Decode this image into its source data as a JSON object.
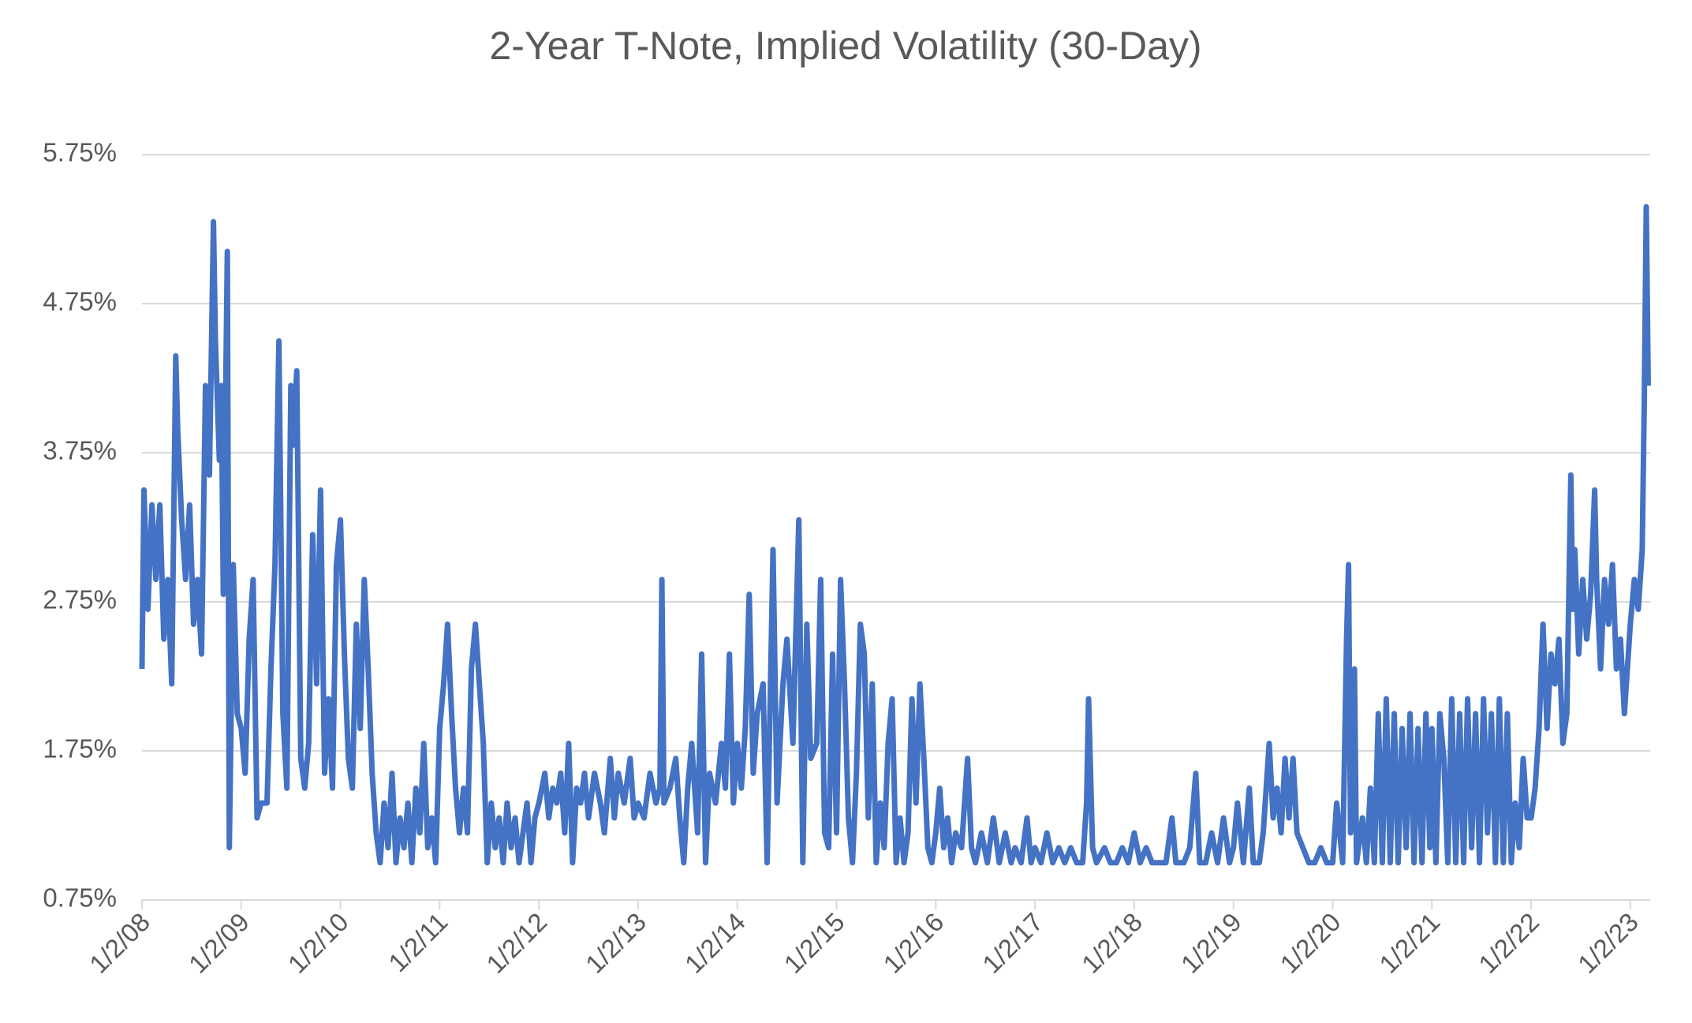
{
  "chart_data": {
    "type": "line",
    "title": "2-Year T-Note, Implied Volatility (30-Day)",
    "color": "#4472c4",
    "grid": true,
    "xlim": [
      2008.0,
      2023.2
    ],
    "ylim": [
      0.75,
      5.75
    ],
    "xticks": [
      {
        "value": 2008,
        "label": "1/2/08"
      },
      {
        "value": 2009,
        "label": "1/2/09"
      },
      {
        "value": 2010,
        "label": "1/2/10"
      },
      {
        "value": 2011,
        "label": "1/2/11"
      },
      {
        "value": 2012,
        "label": "1/2/12"
      },
      {
        "value": 2013,
        "label": "1/2/13"
      },
      {
        "value": 2014,
        "label": "1/2/14"
      },
      {
        "value": 2015,
        "label": "1/2/15"
      },
      {
        "value": 2016,
        "label": "1/2/16"
      },
      {
        "value": 2017,
        "label": "1/2/17"
      },
      {
        "value": 2018,
        "label": "1/2/18"
      },
      {
        "value": 2019,
        "label": "1/2/19"
      },
      {
        "value": 2020,
        "label": "1/2/20"
      },
      {
        "value": 2021,
        "label": "1/2/21"
      },
      {
        "value": 2022,
        "label": "1/2/22"
      },
      {
        "value": 2023,
        "label": "1/2/23"
      }
    ],
    "yticks": [
      {
        "value": 0.75,
        "label": "0.75%"
      },
      {
        "value": 1.75,
        "label": "1.75%"
      },
      {
        "value": 2.75,
        "label": "2.75%"
      },
      {
        "value": 3.75,
        "label": "3.75%"
      },
      {
        "value": 4.75,
        "label": "4.75%"
      },
      {
        "value": 5.75,
        "label": "5.75%"
      }
    ],
    "x": [
      2008.0,
      2008.02,
      2008.06,
      2008.1,
      2008.14,
      2008.18,
      2008.22,
      2008.26,
      2008.3,
      2008.34,
      2008.36,
      2008.4,
      2008.44,
      2008.48,
      2008.52,
      2008.56,
      2008.6,
      2008.64,
      2008.68,
      2008.72,
      2008.74,
      2008.78,
      2008.8,
      2008.82,
      2008.86,
      2008.88,
      2008.92,
      2008.96,
      2009.0,
      2009.04,
      2009.08,
      2009.12,
      2009.16,
      2009.2,
      2009.26,
      2009.3,
      2009.34,
      2009.38,
      2009.42,
      2009.46,
      2009.5,
      2009.52,
      2009.56,
      2009.6,
      2009.64,
      2009.68,
      2009.72,
      2009.76,
      2009.8,
      2009.84,
      2009.88,
      2009.92,
      2009.96,
      2010.0,
      2010.04,
      2010.08,
      2010.12,
      2010.16,
      2010.2,
      2010.24,
      2010.28,
      2010.32,
      2010.36,
      2010.4,
      2010.44,
      2010.48,
      2010.52,
      2010.56,
      2010.6,
      2010.64,
      2010.68,
      2010.72,
      2010.76,
      2010.8,
      2010.84,
      2010.88,
      2010.92,
      2010.96,
      2011.0,
      2011.04,
      2011.08,
      2011.12,
      2011.16,
      2011.2,
      2011.24,
      2011.28,
      2011.32,
      2011.36,
      2011.4,
      2011.44,
      2011.48,
      2011.52,
      2011.56,
      2011.6,
      2011.64,
      2011.68,
      2011.72,
      2011.76,
      2011.8,
      2011.84,
      2011.88,
      2011.92,
      2011.96,
      2012.0,
      2012.06,
      2012.1,
      2012.14,
      2012.18,
      2012.22,
      2012.26,
      2012.3,
      2012.34,
      2012.38,
      2012.42,
      2012.46,
      2012.5,
      2012.56,
      2012.62,
      2012.66,
      2012.72,
      2012.76,
      2012.8,
      2012.86,
      2012.92,
      2012.96,
      2013.0,
      2013.06,
      2013.12,
      2013.18,
      2013.22,
      2013.24,
      2013.26,
      2013.32,
      2013.38,
      2013.42,
      2013.46,
      2013.5,
      2013.54,
      2013.6,
      2013.64,
      2013.68,
      2013.72,
      2013.78,
      2013.84,
      2013.88,
      2013.92,
      2013.96,
      2014.0,
      2014.04,
      2014.08,
      2014.12,
      2014.16,
      2014.2,
      2014.26,
      2014.3,
      2014.36,
      2014.4,
      2014.46,
      2014.5,
      2014.56,
      2014.62,
      2014.66,
      2014.7,
      2014.74,
      2014.8,
      2014.84,
      2014.88,
      2014.92,
      2014.96,
      2015.0,
      2015.04,
      2015.08,
      2015.12,
      2015.16,
      2015.2,
      2015.24,
      2015.28,
      2015.32,
      2015.36,
      2015.4,
      2015.44,
      2015.48,
      2015.52,
      2015.56,
      2015.6,
      2015.64,
      2015.68,
      2015.72,
      2015.76,
      2015.8,
      2015.84,
      2015.88,
      2015.92,
      2015.96,
      2016.0,
      2016.04,
      2016.08,
      2016.12,
      2016.16,
      2016.2,
      2016.26,
      2016.32,
      2016.36,
      2016.4,
      2016.46,
      2016.52,
      2016.58,
      2016.64,
      2016.7,
      2016.76,
      2016.8,
      2016.86,
      2016.92,
      2016.96,
      2017.0,
      2017.06,
      2017.12,
      2017.18,
      2017.24,
      2017.3,
      2017.36,
      2017.42,
      2017.48,
      2017.52,
      2017.54,
      2017.58,
      2017.62,
      2017.7,
      2017.76,
      2017.82,
      2017.88,
      2017.94,
      2018.0,
      2018.06,
      2018.12,
      2018.18,
      2018.26,
      2018.32,
      2018.38,
      2018.42,
      2018.5,
      2018.56,
      2018.62,
      2018.66,
      2018.72,
      2018.78,
      2018.84,
      2018.9,
      2018.96,
      2019.0,
      2019.04,
      2019.1,
      2019.16,
      2019.2,
      2019.26,
      2019.3,
      2019.36,
      2019.4,
      2019.44,
      2019.48,
      2019.52,
      2019.56,
      2019.6,
      2019.64,
      2019.7,
      2019.76,
      2019.82,
      2019.88,
      2019.94,
      2020.0,
      2020.04,
      2020.1,
      2020.14,
      2020.16,
      2020.18,
      2020.22,
      2020.24,
      2020.3,
      2020.34,
      2020.38,
      2020.42,
      2020.46,
      2020.5,
      2020.54,
      2020.58,
      2020.62,
      2020.66,
      2020.7,
      2020.74,
      2020.78,
      2020.82,
      2020.86,
      2020.9,
      2020.94,
      2020.98,
      2021.0,
      2021.04,
      2021.08,
      2021.12,
      2021.16,
      2021.2,
      2021.24,
      2021.28,
      2021.32,
      2021.36,
      2021.4,
      2021.44,
      2021.48,
      2021.52,
      2021.56,
      2021.6,
      2021.64,
      2021.68,
      2021.72,
      2021.76,
      2021.8,
      2021.84,
      2021.88,
      2021.92,
      2021.96,
      2022.0,
      2022.04,
      2022.08,
      2022.12,
      2022.16,
      2022.2,
      2022.24,
      2022.28,
      2022.32,
      2022.36,
      2022.4,
      2022.42,
      2022.44,
      2022.48,
      2022.52,
      2022.56,
      2022.6,
      2022.64,
      2022.66,
      2022.7,
      2022.74,
      2022.78,
      2022.82,
      2022.86,
      2022.9,
      2022.94,
      2022.98,
      2023.0,
      2023.04,
      2023.08,
      2023.12,
      2023.14,
      2023.16,
      2023.18
    ],
    "values": [
      2.3,
      3.5,
      2.7,
      3.4,
      2.9,
      3.4,
      2.5,
      2.9,
      2.2,
      4.4,
      3.9,
      3.3,
      2.9,
      3.4,
      2.6,
      2.9,
      2.4,
      4.2,
      3.6,
      5.3,
      4.5,
      3.7,
      4.2,
      2.8,
      5.1,
      1.1,
      3.0,
      2.0,
      1.9,
      1.6,
      2.5,
      2.9,
      1.3,
      1.4,
      1.4,
      2.3,
      3.0,
      4.5,
      2.0,
      1.5,
      4.2,
      3.8,
      4.3,
      1.7,
      1.5,
      1.8,
      3.2,
      2.2,
      3.5,
      1.6,
      2.1,
      1.5,
      3.0,
      3.3,
      2.4,
      1.7,
      1.5,
      2.6,
      1.9,
      2.9,
      2.3,
      1.6,
      1.2,
      1.0,
      1.4,
      1.1,
      1.6,
      1.0,
      1.3,
      1.1,
      1.4,
      1.0,
      1.5,
      1.2,
      1.8,
      1.1,
      1.3,
      1.0,
      1.9,
      2.2,
      2.6,
      2.0,
      1.5,
      1.2,
      1.5,
      1.2,
      2.3,
      2.6,
      2.2,
      1.8,
      1.0,
      1.4,
      1.1,
      1.3,
      1.0,
      1.4,
      1.1,
      1.3,
      1.0,
      1.2,
      1.4,
      1.0,
      1.3,
      1.4,
      1.6,
      1.3,
      1.5,
      1.4,
      1.6,
      1.2,
      1.8,
      1.0,
      1.5,
      1.4,
      1.6,
      1.3,
      1.6,
      1.4,
      1.2,
      1.7,
      1.3,
      1.6,
      1.4,
      1.7,
      1.3,
      1.4,
      1.3,
      1.6,
      1.4,
      1.5,
      2.9,
      1.4,
      1.5,
      1.7,
      1.3,
      1.0,
      1.5,
      1.8,
      1.2,
      2.4,
      1.0,
      1.6,
      1.4,
      1.8,
      1.5,
      2.4,
      1.4,
      1.8,
      1.5,
      1.9,
      2.8,
      1.6,
      2.0,
      2.2,
      1.0,
      3.1,
      1.4,
      2.2,
      2.5,
      1.8,
      3.3,
      1.0,
      2.6,
      1.7,
      1.8,
      2.9,
      1.2,
      1.1,
      2.4,
      1.2,
      2.9,
      2.2,
      1.3,
      1.0,
      1.6,
      2.6,
      2.4,
      1.3,
      2.2,
      1.0,
      1.4,
      1.1,
      1.8,
      2.1,
      1.0,
      1.3,
      1.0,
      1.2,
      2.1,
      1.4,
      2.2,
      1.7,
      1.1,
      1.0,
      1.2,
      1.5,
      1.1,
      1.3,
      1.0,
      1.2,
      1.1,
      1.7,
      1.1,
      1.0,
      1.2,
      1.0,
      1.3,
      1.0,
      1.2,
      1.0,
      1.1,
      1.0,
      1.3,
      1.0,
      1.1,
      1.0,
      1.2,
      1.0,
      1.1,
      1.0,
      1.1,
      1.0,
      1.0,
      1.4,
      2.1,
      1.1,
      1.0,
      1.1,
      1.0,
      1.0,
      1.1,
      1.0,
      1.2,
      1.0,
      1.1,
      1.0,
      1.0,
      1.0,
      1.3,
      1.0,
      1.0,
      1.1,
      1.6,
      1.0,
      1.0,
      1.2,
      1.0,
      1.3,
      1.0,
      1.1,
      1.4,
      1.0,
      1.5,
      1.0,
      1.0,
      1.2,
      1.8,
      1.3,
      1.5,
      1.2,
      1.7,
      1.3,
      1.7,
      1.2,
      1.1,
      1.0,
      1.0,
      1.1,
      1.0,
      1.0,
      1.4,
      1.0,
      2.5,
      3.0,
      1.2,
      2.3,
      1.0,
      1.3,
      1.0,
      1.5,
      1.0,
      2.0,
      1.0,
      2.1,
      1.0,
      2.0,
      1.0,
      1.9,
      1.1,
      2.0,
      1.0,
      1.9,
      1.0,
      2.0,
      1.1,
      1.9,
      1.0,
      2.0,
      1.7,
      1.0,
      2.1,
      1.0,
      2.0,
      1.0,
      2.1,
      1.1,
      2.0,
      1.0,
      2.1,
      1.2,
      2.0,
      1.0,
      2.1,
      1.0,
      2.0,
      1.0,
      1.4,
      1.1,
      1.7,
      1.3,
      1.3,
      1.5,
      1.9,
      2.6,
      1.9,
      2.4,
      2.2,
      2.5,
      1.8,
      2.0,
      3.6,
      2.7,
      3.1,
      2.4,
      2.9,
      2.5,
      2.8,
      3.5,
      2.9,
      2.3,
      2.9,
      2.6,
      3.0,
      2.3,
      2.5,
      2.0,
      2.4,
      2.6,
      2.9,
      2.7,
      3.1,
      4.1,
      5.4,
      4.2
    ]
  }
}
